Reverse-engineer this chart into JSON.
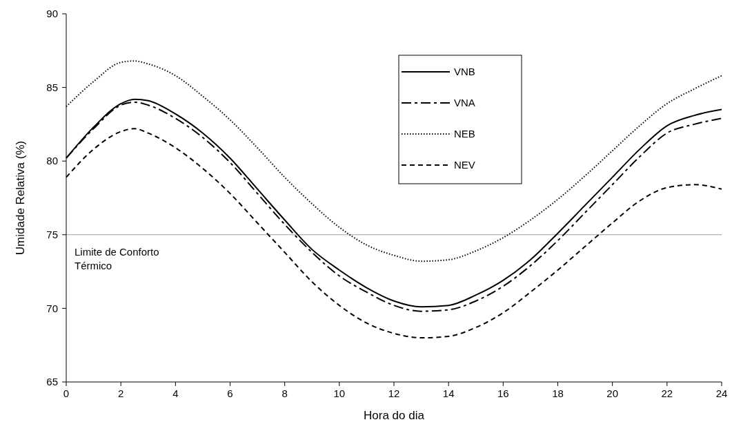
{
  "chart_data": {
    "type": "line",
    "xlabel": "Hora do dia",
    "ylabel": "Umidade Relativa (%)",
    "x": [
      0,
      1,
      2,
      2.5,
      3,
      4,
      5,
      6,
      7,
      8,
      9,
      10,
      11,
      12,
      13,
      14,
      15,
      16,
      17,
      18,
      19,
      20,
      21,
      22,
      23,
      24
    ],
    "xlim": [
      0,
      24
    ],
    "xticks": [
      0,
      2,
      4,
      6,
      8,
      10,
      12,
      14,
      16,
      18,
      20,
      22,
      24
    ],
    "ylim": [
      65,
      90
    ],
    "yticks": [
      65,
      70,
      75,
      80,
      85,
      90
    ],
    "grid": false,
    "legend": "top",
    "marker": "none",
    "series": [
      {
        "name": "VNB",
        "color": "#000000",
        "line_style": "solid",
        "values": [
          80.2,
          82.3,
          83.9,
          84.2,
          84.1,
          83.2,
          81.9,
          80.2,
          78.1,
          76.0,
          74.0,
          72.6,
          71.4,
          70.5,
          70.1,
          70.2,
          70.9,
          71.9,
          73.3,
          75.1,
          77.0,
          78.9,
          80.8,
          82.4,
          83.1,
          83.5
        ]
      },
      {
        "name": "VNA",
        "color": "#000000",
        "line_style": "dashdot",
        "values": [
          80.2,
          82.2,
          83.8,
          84.0,
          83.8,
          82.9,
          81.6,
          79.9,
          77.8,
          75.7,
          73.8,
          72.2,
          71.1,
          70.2,
          69.8,
          69.9,
          70.5,
          71.5,
          72.9,
          74.6,
          76.5,
          78.4,
          80.3,
          81.9,
          82.5,
          82.9
        ]
      },
      {
        "name": "NEB",
        "color": "#000000",
        "line_style": "dotted",
        "values": [
          83.7,
          85.4,
          86.7,
          86.8,
          86.6,
          85.8,
          84.4,
          82.8,
          80.9,
          78.9,
          77.1,
          75.5,
          74.3,
          73.6,
          73.2,
          73.3,
          73.9,
          74.8,
          76.0,
          77.4,
          79.0,
          80.7,
          82.4,
          83.9,
          84.9,
          85.8
        ]
      },
      {
        "name": "NEV",
        "color": "#000000",
        "line_style": "dashed",
        "values": [
          78.9,
          80.8,
          82.0,
          82.2,
          81.9,
          80.9,
          79.5,
          77.8,
          75.8,
          73.8,
          71.8,
          70.2,
          69.0,
          68.3,
          68.0,
          68.1,
          68.7,
          69.7,
          71.1,
          72.6,
          74.2,
          75.8,
          77.3,
          78.2,
          78.4,
          78.1
        ]
      }
    ],
    "ref_lines": [
      {
        "axis": "y",
        "value": 75,
        "label": "Limite de Conforto Térmico",
        "color": "#a0a0a0",
        "line_style": "solid"
      }
    ]
  }
}
